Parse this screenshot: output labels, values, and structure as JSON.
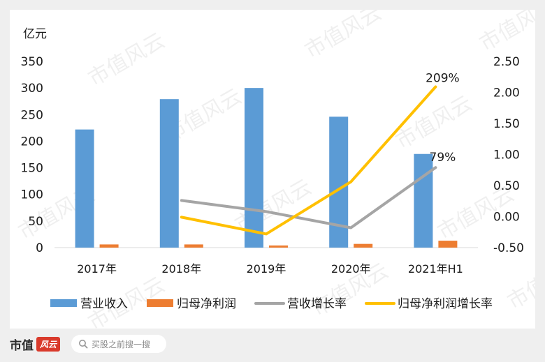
{
  "colors": {
    "revenue": "#5b9bd5",
    "net_profit": "#ed7d31",
    "revenue_growth": "#a5a5a5",
    "profit_growth": "#ffc000",
    "background": "#efefef",
    "card": "#ffffff"
  },
  "chart_data": {
    "type": "bar",
    "categories": [
      "2017年",
      "2018年",
      "2019年",
      "2020年",
      "2021年H1"
    ],
    "ylabel": "亿元",
    "ylim": [
      0,
      350
    ],
    "y_ticks": [
      "0",
      "50",
      "100",
      "150",
      "200",
      "250",
      "300",
      "350"
    ],
    "y2lim": [
      -0.5,
      2.5
    ],
    "y2_ticks": [
      "-0.50",
      "0.00",
      "0.50",
      "1.00",
      "1.50",
      "2.00",
      "2.50"
    ],
    "grid": false,
    "legend_position": "bottom",
    "series": [
      {
        "name": "营业收入",
        "type": "bar",
        "axis": "left",
        "values": [
          222,
          279,
          300,
          246,
          176
        ]
      },
      {
        "name": "归母净利润",
        "type": "bar",
        "axis": "left",
        "values": [
          6,
          6,
          4,
          7,
          13
        ]
      },
      {
        "name": "营收增长率",
        "type": "line",
        "axis": "right",
        "values": [
          null,
          0.26,
          0.08,
          -0.18,
          0.79
        ]
      },
      {
        "name": "归母净利润增长率",
        "type": "line",
        "axis": "right",
        "values": [
          null,
          -0.01,
          -0.28,
          0.56,
          2.09
        ]
      }
    ],
    "annotations": [
      {
        "series": "归母净利润增长率",
        "category": "2021年H1",
        "text": "209%"
      },
      {
        "series": "营收增长率",
        "category": "2021年H1",
        "text": "79%"
      }
    ]
  },
  "watermark": "市值风云",
  "footer": {
    "brand": "市值",
    "brand_logo": "风云",
    "search_placeholder": "买股之前搜一搜"
  }
}
